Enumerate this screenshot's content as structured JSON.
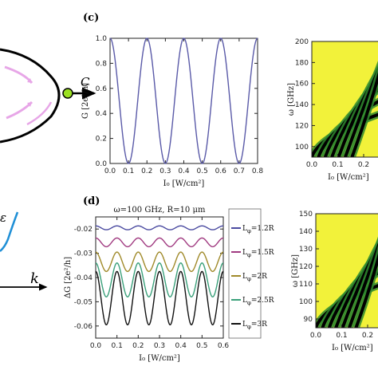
{
  "panels": {
    "c": "(c)",
    "d": "(d)"
  },
  "schematic": {
    "node_label": "C",
    "axis_label": "k",
    "partial_label": "ε"
  },
  "chart_data": [
    {
      "id": "c",
      "type": "line",
      "xlabel": "I₀ [W/cm²]",
      "ylabel": "G [2e²/h]",
      "xlim": [
        0,
        0.8
      ],
      "ylim": [
        0,
        1.0
      ],
      "xticks": [
        0.0,
        0.1,
        0.2,
        0.3,
        0.4,
        0.5,
        0.6,
        0.7,
        0.8
      ],
      "yticks": [
        0.0,
        0.2,
        0.4,
        0.6,
        0.8,
        1.0
      ],
      "tick_labels_x": [
        "0.0",
        "0.1",
        "0.2",
        "0.3",
        "0.4",
        "0.5",
        "0.6",
        "0.7",
        "0.8"
      ],
      "tick_labels_y": [
        "0.0",
        "0.2",
        "0.4",
        "0.6",
        "0.8",
        "1.0"
      ],
      "series": [
        {
          "color": "#5a5aa8",
          "function": "G = cos^2(5*pi*I0/2) (min at 0.1, 0.3, 0.5, 0.7; max 1.0 at 0.0, 0.2, 0.4, 0.6, 0.8)",
          "minima_x": [
            0.1,
            0.3,
            0.5,
            0.7
          ],
          "maxima_x": [
            0.0,
            0.2,
            0.4,
            0.6,
            0.8
          ]
        }
      ]
    },
    {
      "id": "d",
      "type": "line",
      "title": "ω=100 GHz, R=10 μm",
      "xlabel": "I₀ [W/cm²]",
      "ylabel": "ΔG [2e²/h]",
      "xlim": [
        0,
        0.6
      ],
      "ylim": [
        -0.065,
        -0.015
      ],
      "tick_labels_x": [
        "0.0",
        "0.1",
        "0.2",
        "0.3",
        "0.4",
        "0.5",
        "0.6"
      ],
      "tick_labels_y": [
        "-0.02",
        "-0.03",
        "-0.04",
        "-0.05",
        "-0.06"
      ],
      "xticks": [
        0.0,
        0.1,
        0.2,
        0.3,
        0.4,
        0.5,
        0.6
      ],
      "yticks": [
        -0.02,
        -0.03,
        -0.04,
        -0.05,
        -0.06
      ],
      "legend_position": "right",
      "series": [
        {
          "name": "L_φ=1.2R",
          "color": "#4a4aa0",
          "center": -0.0195,
          "amplitude": 0.0008
        },
        {
          "name": "L_φ=1.5R",
          "color": "#a03a80",
          "center": -0.0255,
          "amplitude": 0.0018
        },
        {
          "name": "L_φ=2R",
          "color": "#a08a2a",
          "center": -0.0335,
          "amplitude": 0.004
        },
        {
          "name": "L_φ=2.5R",
          "color": "#3aa07a",
          "center": -0.041,
          "amplitude": 0.007
        },
        {
          "name": "L_φ=3R",
          "color": "#111111",
          "center": -0.0485,
          "amplitude": 0.011
        }
      ],
      "legend_labels": [
        "L",
        "L",
        "L",
        "L",
        "L"
      ],
      "legend_subscripts": [
        "φ",
        "φ",
        "φ",
        "φ",
        "φ"
      ],
      "legend_suffixes": [
        "=1.2R",
        "=1.5R",
        "=2R",
        "=2.5R",
        "=3R"
      ]
    },
    {
      "id": "top-right",
      "type": "heatmap",
      "ylabel": "ω [GHz]",
      "xlabel": "I₀ [W/cm²]",
      "ylim": [
        90,
        200
      ],
      "xlim": [
        0,
        0.3
      ],
      "tick_labels_y": [
        "200",
        "180",
        "160",
        "140",
        "120",
        "100"
      ],
      "yticks": [
        200,
        180,
        160,
        140,
        120,
        100
      ],
      "tick_labels_x": [
        "0.0",
        "0.1",
        "0.2"
      ],
      "xticks": [
        0.0,
        0.1,
        0.2
      ],
      "colors": {
        "high": "#f2f23a",
        "mid": "#2f8a2f",
        "low": "#000000"
      }
    },
    {
      "id": "bottom-right",
      "type": "heatmap",
      "ylabel": "ω [GHz]",
      "xlabel": "I₀ [W/cm²]",
      "ylim": [
        85,
        150
      ],
      "xlim": [
        0,
        0.3
      ],
      "tick_labels_y": [
        "150",
        "140",
        "130",
        "120",
        "110",
        "100",
        "90"
      ],
      "yticks": [
        150,
        140,
        130,
        120,
        110,
        100,
        90
      ],
      "tick_labels_x": [
        "0.0",
        "0.1",
        "0.2"
      ],
      "xticks": [
        0.0,
        0.1,
        0.2
      ],
      "colors": {
        "high": "#f2f23a",
        "mid": "#2f8a2f",
        "low": "#000000"
      }
    }
  ]
}
